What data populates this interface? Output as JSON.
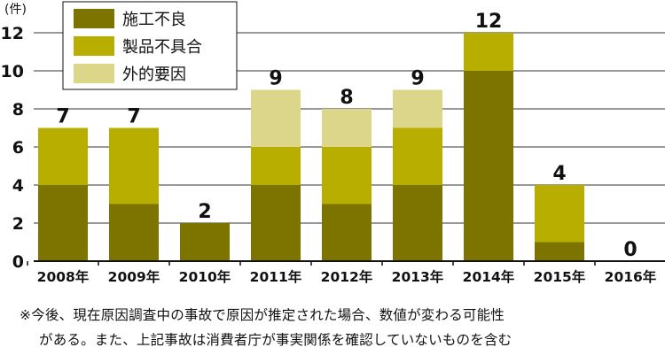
{
  "chart_data": {
    "type": "bar",
    "stacked": true,
    "y_unit_label": "(件)",
    "categories": [
      "2008年",
      "2009年",
      "2010年",
      "2011年",
      "2012年",
      "2013年",
      "2014年",
      "2015年",
      "2016年"
    ],
    "series": [
      {
        "name": "施工不良",
        "color": "#7d7400",
        "values": [
          4,
          3,
          2,
          4,
          3,
          4,
          10,
          1,
          0
        ]
      },
      {
        "name": "製品不具合",
        "color": "#b8ae00",
        "values": [
          3,
          4,
          0,
          2,
          3,
          3,
          2,
          3,
          0
        ]
      },
      {
        "name": "外的要因",
        "color": "#dcd68a",
        "values": [
          0,
          0,
          0,
          3,
          2,
          2,
          0,
          0,
          0
        ]
      }
    ],
    "totals": [
      "7",
      "7",
      "2",
      "9",
      "8",
      "9",
      "12",
      "4",
      "0"
    ],
    "ylim": [
      0,
      12
    ],
    "yticks": [
      "0",
      "2",
      "4",
      "6",
      "8",
      "10",
      "12"
    ],
    "grid": true,
    "legend": "top-left"
  },
  "notes": {
    "line1": "※今後、現在原因調査中の事故で原因が推定された場合、数値が変わる可能性",
    "line2": "がある。また、上記事故は消費者庁が事実関係を確認していないものを含む"
  }
}
